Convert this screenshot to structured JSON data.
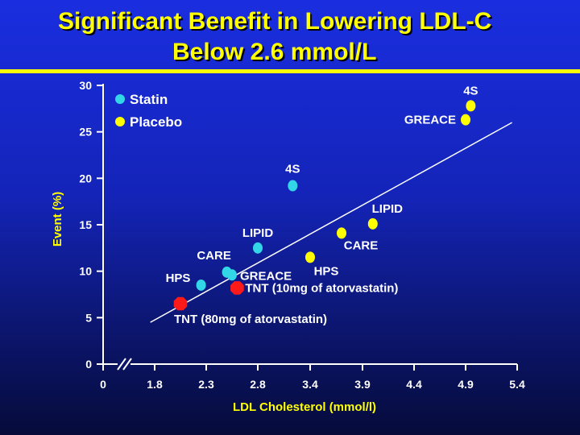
{
  "title": {
    "line1": "Significant Benefit in Lowering LDL-C",
    "line2": "Below  2.6 mmol/L"
  },
  "colors": {
    "background": "#1424b8",
    "title": "#ffff00",
    "statin": "#33d6e6",
    "placebo": "#ffff00",
    "tnt": "#ff1a1a",
    "text": "#ffffff"
  },
  "chart_data": {
    "type": "scatter",
    "title": "",
    "xlabel": "LDL Cholesterol (mmol/l)",
    "ylabel": "Event (%)",
    "xlim": [
      0,
      5.4
    ],
    "ylim": [
      0,
      30
    ],
    "x_ticks": [
      "0",
      "1.8",
      "2.3",
      "2.8",
      "3.4",
      "3.9",
      "4.4",
      "4.9",
      "5.4"
    ],
    "y_ticks": [
      "0",
      "5",
      "10",
      "15",
      "20",
      "25",
      "30"
    ],
    "axis_break": true,
    "grid": false,
    "legend_position": "top-left",
    "legend": [
      {
        "name": "Statin",
        "color": "#33d6e6"
      },
      {
        "name": "Placebo",
        "color": "#ffff00"
      }
    ],
    "series": [
      {
        "name": "Statin",
        "color": "#33d6e6",
        "points": [
          {
            "label": "4S",
            "x": 3.2,
            "y": 19.2
          },
          {
            "label": "LIPID",
            "x": 2.8,
            "y": 12.5
          },
          {
            "label": "CARE",
            "x": 2.5,
            "y": 9.9
          },
          {
            "label": "GREACE",
            "x": 2.55,
            "y": 9.6
          },
          {
            "label": "HPS",
            "x": 2.25,
            "y": 8.5
          }
        ]
      },
      {
        "name": "Placebo",
        "color": "#ffff00",
        "points": [
          {
            "label": "4S",
            "x": 4.95,
            "y": 27.8
          },
          {
            "label": "GREACE",
            "x": 4.9,
            "y": 26.3
          },
          {
            "label": "LIPID",
            "x": 4.0,
            "y": 15.1
          },
          {
            "label": "CARE",
            "x": 3.7,
            "y": 14.1
          },
          {
            "label": "HPS",
            "x": 3.4,
            "y": 11.5
          }
        ]
      },
      {
        "name": "",
        "color": "#ff1a1a",
        "points": [
          {
            "label": "TNT (10mg of atorvastatin)",
            "x": 2.6,
            "y": 8.2
          },
          {
            "label": "TNT (80mg of atorvastatin)",
            "x": 2.05,
            "y": 6.5
          }
        ]
      }
    ],
    "trend_line": {
      "x": [
        1.65,
        5.35
      ],
      "y": [
        4.5,
        26.0
      ]
    }
  }
}
